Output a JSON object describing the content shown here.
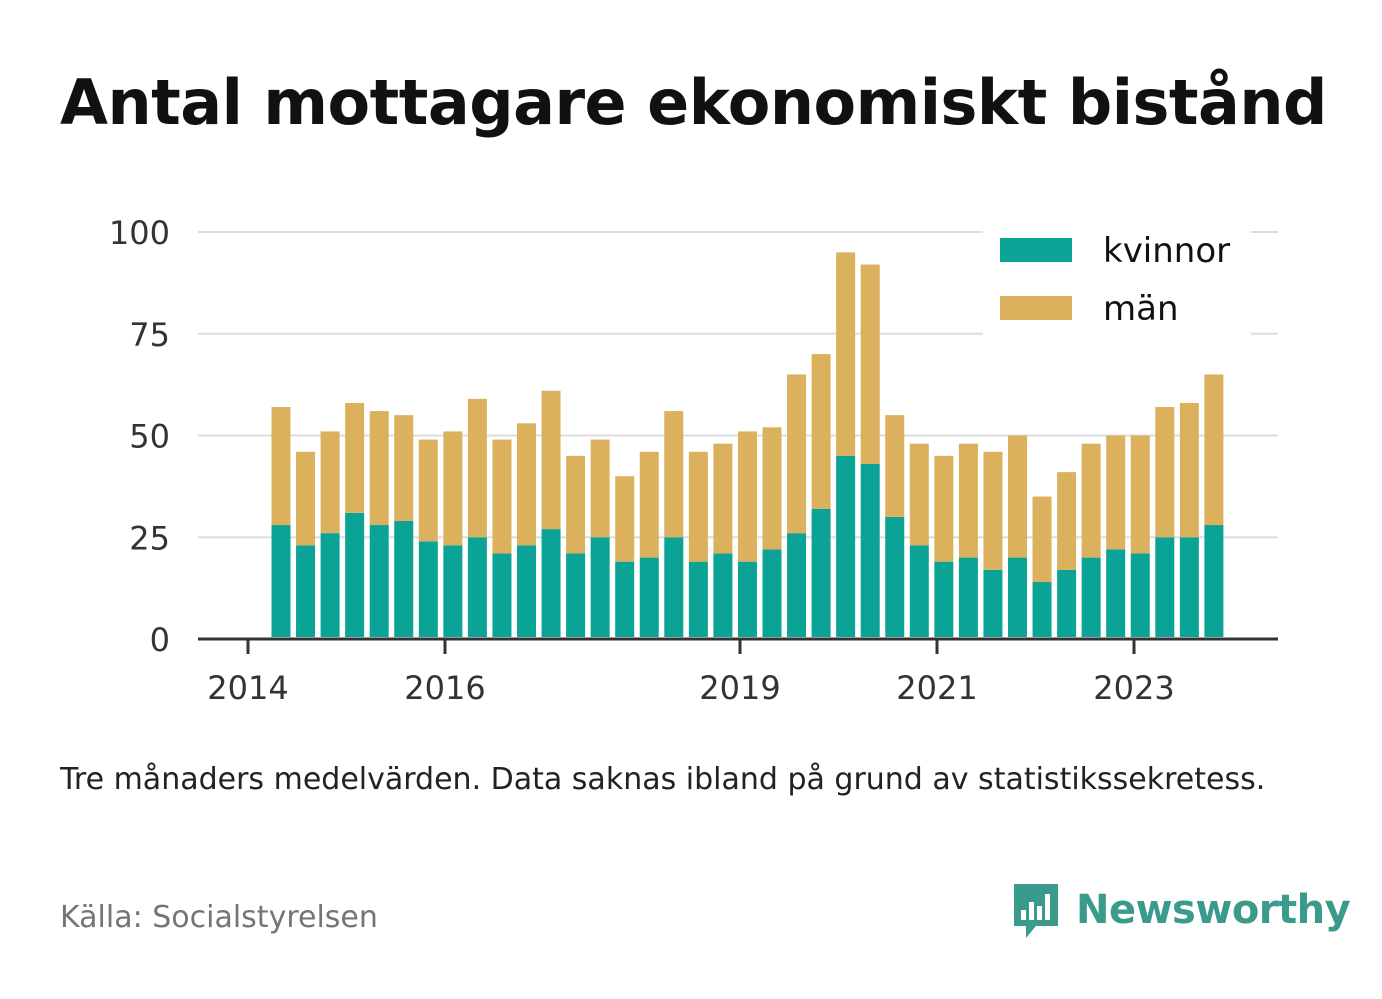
{
  "chart_data": {
    "type": "bar",
    "stacked": true,
    "title": "Antal mottagare ekonomiskt bistånd",
    "xlabel": "",
    "ylabel": "",
    "ylim": [
      0,
      100
    ],
    "y_ticks": [
      "0",
      "25",
      "50",
      "75",
      "100"
    ],
    "x_ticks": [
      "2014",
      "2016",
      "2019",
      "2021",
      "2023"
    ],
    "grid": true,
    "legend_position": "top-right",
    "colors": {
      "kvinnor": "#0aa396",
      "man": "#dbb15d"
    },
    "series": [
      {
        "name": "kvinnor",
        "values": [
          28,
          23,
          26,
          31,
          28,
          29,
          24,
          23,
          25,
          21,
          23,
          27,
          21,
          25,
          19,
          20,
          25,
          19,
          21,
          19,
          22,
          26,
          32,
          45,
          43,
          30,
          23,
          19,
          20,
          17,
          20,
          14,
          17,
          20,
          22,
          21,
          25,
          25,
          28
        ]
      },
      {
        "name": "män",
        "values": [
          29,
          23,
          25,
          27,
          28,
          26,
          25,
          28,
          34,
          28,
          30,
          34,
          24,
          24,
          21,
          26,
          31,
          27,
          27,
          32,
          30,
          39,
          38,
          50,
          49,
          25,
          25,
          26,
          28,
          29,
          30,
          21,
          24,
          28,
          28,
          29,
          32,
          33,
          37
        ]
      }
    ]
  },
  "footer": {
    "note": "Tre månaders medelvärden. Data saknas ibland på grund av statistikssekretess.",
    "source": "Källa: Socialstyrelsen",
    "brand": "Newsworthy",
    "brand_icon": "bar-chart-speech-bubble-icon"
  }
}
